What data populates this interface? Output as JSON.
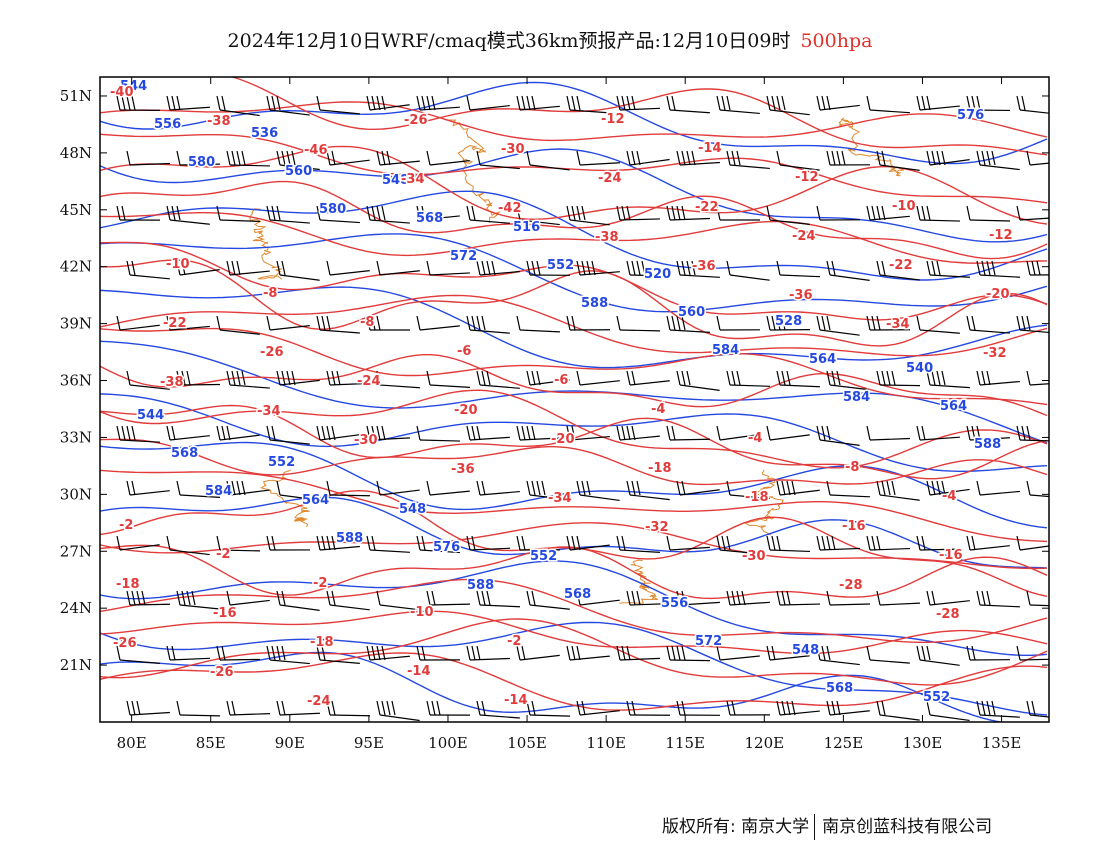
{
  "title": {
    "main": "2024年12月10日WRF/cmaq模式36km预报产品:12月10日09时",
    "level": "500hpa",
    "level_color": "#e0302a"
  },
  "map": {
    "lon_range": [
      78,
      138
    ],
    "lat_range": [
      18,
      52
    ],
    "x_ticks": [
      "80E",
      "85E",
      "90E",
      "95E",
      "100E",
      "105E",
      "110E",
      "115E",
      "120E",
      "125E",
      "130E",
      "135E"
    ],
    "y_ticks": [
      "51N",
      "48N",
      "45N",
      "42N",
      "39N",
      "36N",
      "33N",
      "30N",
      "27N",
      "24N",
      "21N"
    ],
    "colors": {
      "temperature": "#e23b3b",
      "geopotential": "#2549e0",
      "coastline": "#e08a30",
      "wind": "#000000",
      "frame": "#000000"
    },
    "geopotential_labels": [
      "544",
      "536",
      "548",
      "516",
      "520",
      "528",
      "540",
      "544",
      "552",
      "548",
      "552",
      "556",
      "548",
      "552",
      "556",
      "560",
      "568",
      "552",
      "560",
      "564",
      "564",
      "568",
      "564",
      "576",
      "568",
      "572",
      "568",
      "576",
      "580",
      "580",
      "572",
      "588",
      "584",
      "584",
      "588",
      "584",
      "588",
      "588"
    ],
    "temperature_labels": [
      "-40",
      "-38",
      "-46",
      "-34",
      "-42",
      "-38",
      "-36",
      "-36",
      "-34",
      "-32",
      "-38",
      "-34",
      "-30",
      "-36",
      "-34",
      "-32",
      "-30",
      "-28",
      "-28",
      "-26",
      "-26",
      "-24",
      "-26",
      "-30",
      "-24",
      "-22",
      "-24",
      "-22",
      "-20",
      "-22",
      "-26",
      "-24",
      "-20",
      "-20",
      "-18",
      "-18",
      "-16",
      "-16",
      "-18",
      "-16",
      "-18",
      "-14",
      "-14",
      "-12",
      "-14",
      "-12",
      "-10",
      "-12",
      "-10",
      "-8",
      "-8",
      "-6",
      "-6",
      "-4",
      "-4",
      "-8",
      "-4",
      "-2",
      "-2",
      "-2",
      "-10",
      "-2"
    ],
    "notes": "Overlay of 500hPa geopotential height contours (blue, dagpm) and temperature contours (red, °C) with wind barbs (black) over China and surrounding region."
  },
  "footer": {
    "left": "版权所有: 南京大学",
    "right": "南京创蓝科技有限公司"
  }
}
